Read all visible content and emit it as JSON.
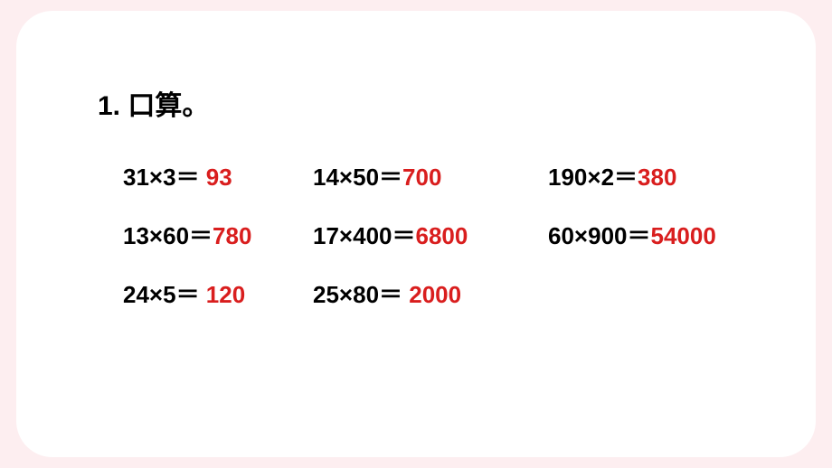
{
  "title": "1. 口算。",
  "colors": {
    "page_background": "#fdeef0",
    "content_background": "#ffffff",
    "text_color": "#000000",
    "answer_color": "#d91e1e"
  },
  "typography": {
    "title_fontsize": 30,
    "problem_fontsize": 26,
    "font_weight": "bold",
    "font_family": "Microsoft YaHei"
  },
  "layout": {
    "content_border_radius": 40,
    "grid_columns": [
      "210px",
      "260px",
      "auto"
    ],
    "row_gap": 28
  },
  "problems": [
    {
      "expression": "31×3＝ ",
      "answer": "93"
    },
    {
      "expression": "14×50＝",
      "answer": "700"
    },
    {
      "expression": "190×2＝",
      "answer": "380"
    },
    {
      "expression": "13×60＝",
      "answer": "780"
    },
    {
      "expression": "17×400＝",
      "answer": "6800"
    },
    {
      "expression": "60×900＝",
      "answer": "54000"
    },
    {
      "expression": "24×5＝ ",
      "answer": "120"
    },
    {
      "expression": "25×80＝ ",
      "answer": "2000"
    }
  ]
}
